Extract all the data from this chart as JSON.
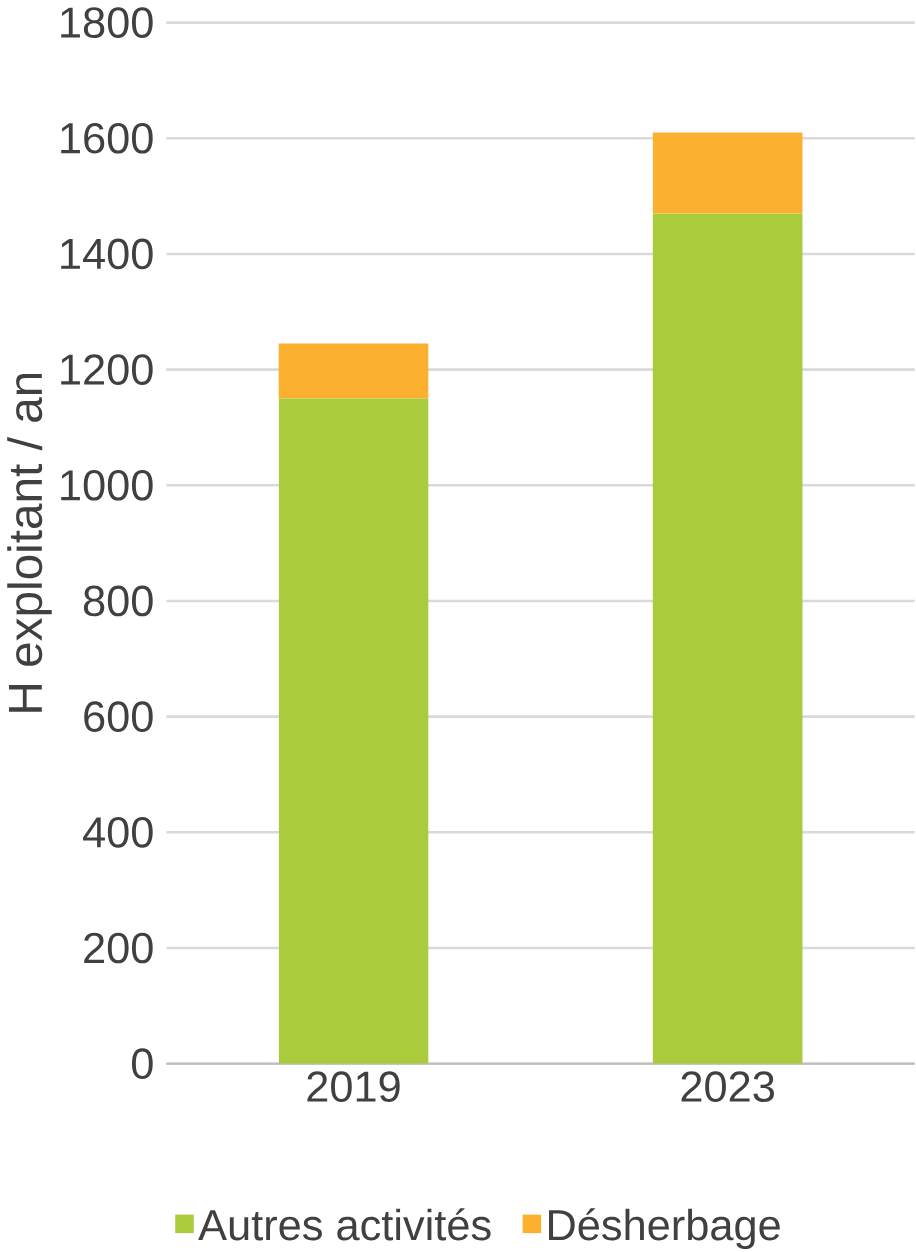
{
  "chart_data": {
    "type": "bar",
    "stacked": true,
    "ylabel": "H exploitant / an",
    "categories": [
      "2019",
      "2023"
    ],
    "series": [
      {
        "name": "Autres activités",
        "color": "#aacb3b",
        "values": [
          1150,
          1470
        ]
      },
      {
        "name": "Désherbage",
        "color": "#fbb02f",
        "values": [
          95,
          140
        ]
      }
    ],
    "ylim": [
      0,
      1800
    ],
    "yticks": [
      0,
      200,
      400,
      600,
      800,
      1000,
      1200,
      1400,
      1600,
      1800
    ],
    "grid": "y",
    "legend": "bottom"
  }
}
